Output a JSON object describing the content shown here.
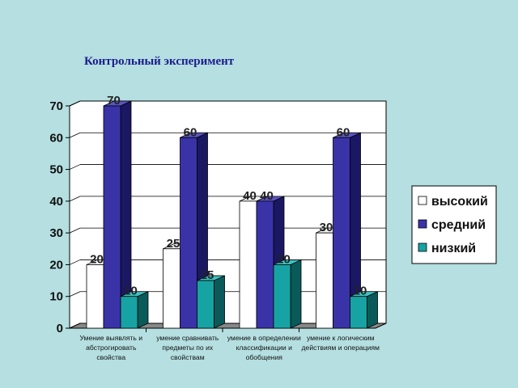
{
  "chart_data": {
    "type": "bar",
    "title": "Контрольный эксперимент",
    "categories": [
      [
        "Умение выявлять и",
        "абстрогировать",
        "свойства"
      ],
      [
        "умение сравнивать",
        "предметы по их",
        "свойствам"
      ],
      [
        "умение в определении",
        "классификации и",
        "обобщения"
      ],
      [
        "умение к логическим",
        "действиям и операциям"
      ]
    ],
    "series": [
      {
        "name": "высокий",
        "values": [
          20,
          25,
          40,
          30
        ],
        "color": "#ffffff",
        "side": "#c9c9c9",
        "top": "#f2f2f2"
      },
      {
        "name": "средний",
        "values": [
          70,
          60,
          40,
          60
        ],
        "color": "#3a33a8",
        "side": "#1a1763",
        "top": "#5a54c4"
      },
      {
        "name": "низкий",
        "values": [
          10,
          15,
          20,
          10
        ],
        "color": "#17a3a3",
        "side": "#0a5a5a",
        "top": "#3fc2c2"
      }
    ],
    "yticks": [
      "0",
      "10",
      "20",
      "30",
      "40",
      "50",
      "60",
      "70"
    ],
    "ylim": [
      0,
      70
    ],
    "grid": true,
    "legend": "right"
  }
}
